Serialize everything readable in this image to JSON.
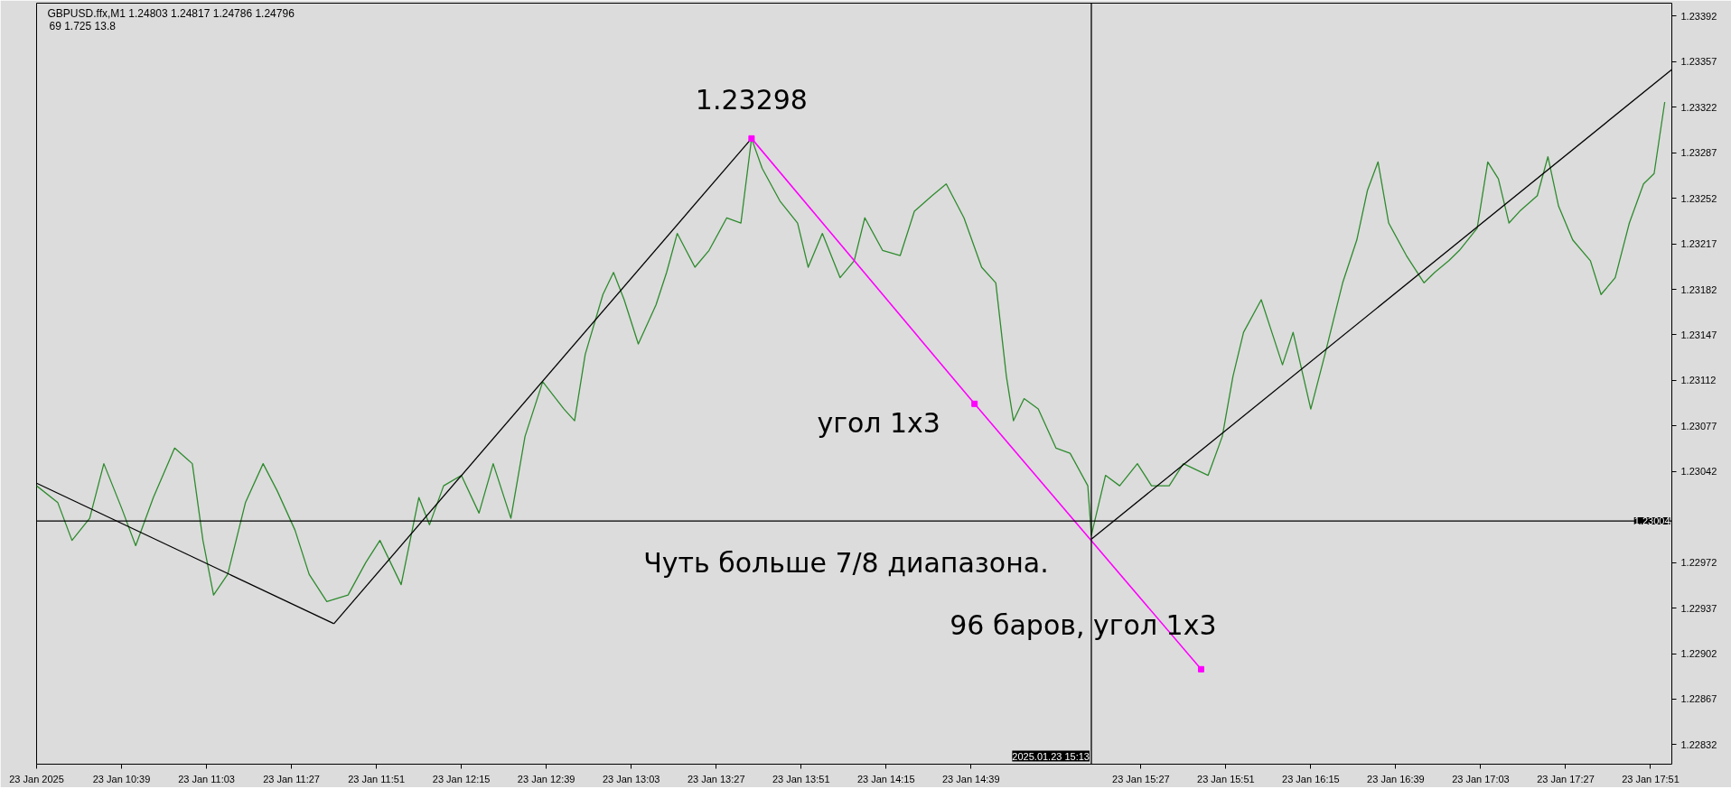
{
  "chart_data": {
    "type": "line",
    "title": "GBPUSD.ffx,M1  1.24803 1.24817 1.24786 1.24796",
    "subtitle": "69   1.725  13.8",
    "series": [
      {
        "color": "#2e8b2e",
        "x": [
          "2025-01-23T10:15",
          "2025-01-23T10:21",
          "2025-01-23T10:25",
          "2025-01-23T10:30",
          "2025-01-23T10:34",
          "2025-01-23T10:39",
          "2025-01-23T10:43",
          "2025-01-23T10:48",
          "2025-01-23T10:54",
          "2025-01-23T10:59",
          "2025-01-23T11:02",
          "2025-01-23T11:05",
          "2025-01-23T11:09",
          "2025-01-23T11:14",
          "2025-01-23T11:19",
          "2025-01-23T11:23",
          "2025-01-23T11:28",
          "2025-01-23T11:32",
          "2025-01-23T11:37",
          "2025-01-23T11:43",
          "2025-01-23T11:48",
          "2025-01-23T11:52",
          "2025-01-23T11:58",
          "2025-01-23T12:03",
          "2025-01-23T12:06",
          "2025-01-23T12:10",
          "2025-01-23T12:15",
          "2025-01-23T12:20",
          "2025-01-23T12:24",
          "2025-01-23T12:29",
          "2025-01-23T12:33",
          "2025-01-23T12:38",
          "2025-01-23T12:44",
          "2025-01-23T12:47",
          "2025-01-23T12:50",
          "2025-01-23T12:55",
          "2025-01-23T12:58",
          "2025-01-23T13:01",
          "2025-01-23T13:05",
          "2025-01-23T13:10",
          "2025-01-23T13:13",
          "2025-01-23T13:16",
          "2025-01-23T13:21",
          "2025-01-23T13:25",
          "2025-01-23T13:30",
          "2025-01-23T13:34",
          "2025-01-23T13:37",
          "2025-01-23T13:40",
          "2025-01-23T13:45",
          "2025-01-23T13:50",
          "2025-01-23T13:53",
          "2025-01-23T13:57",
          "2025-01-23T14:02",
          "2025-01-23T14:06",
          "2025-01-23T14:09",
          "2025-01-23T14:14",
          "2025-01-23T14:19",
          "2025-01-23T14:23",
          "2025-01-23T14:28",
          "2025-01-23T14:32",
          "2025-01-23T14:37",
          "2025-01-23T14:42",
          "2025-01-23T14:46",
          "2025-01-23T14:49",
          "2025-01-23T14:51",
          "2025-01-23T14:54",
          "2025-01-23T14:58",
          "2025-01-23T15:03",
          "2025-01-23T15:07",
          "2025-01-23T15:12",
          "2025-01-23T15:13",
          "2025-01-23T15:17",
          "2025-01-23T15:21",
          "2025-01-23T15:26",
          "2025-01-23T15:30",
          "2025-01-23T15:35",
          "2025-01-23T15:39",
          "2025-01-23T15:46",
          "2025-01-23T15:50",
          "2025-01-23T15:53",
          "2025-01-23T15:56",
          "2025-01-23T16:01",
          "2025-01-23T16:04",
          "2025-01-23T16:07",
          "2025-01-23T16:10",
          "2025-01-23T16:15",
          "2025-01-23T16:19",
          "2025-01-23T16:24",
          "2025-01-23T16:28",
          "2025-01-23T16:31",
          "2025-01-23T16:34",
          "2025-01-23T16:37",
          "2025-01-23T16:42",
          "2025-01-23T16:47",
          "2025-01-23T16:50",
          "2025-01-23T16:54",
          "2025-01-23T16:57",
          "2025-01-23T17:02",
          "2025-01-23T17:05",
          "2025-01-23T17:08",
          "2025-01-23T17:11",
          "2025-01-23T17:14",
          "2025-01-23T17:19",
          "2025-01-23T17:22",
          "2025-01-23T17:25",
          "2025-01-23T17:29",
          "2025-01-23T17:34",
          "2025-01-23T17:37",
          "2025-01-23T17:41",
          "2025-01-23T17:45",
          "2025-01-23T17:49",
          "2025-01-23T17:52",
          "2025-01-23T17:55"
        ],
        "values": [
          1.23031,
          1.23018,
          1.22989,
          1.23006,
          1.23048,
          1.23014,
          1.22985,
          1.23022,
          1.2306,
          1.23048,
          1.22989,
          1.22947,
          1.22963,
          1.23018,
          1.23048,
          1.23027,
          1.22997,
          1.22963,
          1.22942,
          1.22947,
          1.22972,
          1.22989,
          1.22955,
          1.23022,
          1.23001,
          1.23031,
          1.23039,
          1.2301,
          1.23048,
          1.23006,
          1.23069,
          1.23111,
          1.2309,
          1.23081,
          1.23132,
          1.23178,
          1.23195,
          1.23174,
          1.2314,
          1.2317,
          1.23195,
          1.23225,
          1.23199,
          1.23212,
          1.23237,
          1.23233,
          1.23298,
          1.23275,
          1.2325,
          1.23233,
          1.23199,
          1.23225,
          1.23191,
          1.23204,
          1.23237,
          1.23212,
          1.23208,
          1.23242,
          1.23254,
          1.23263,
          1.23237,
          1.23199,
          1.23187,
          1.23115,
          1.23081,
          1.23098,
          1.2309,
          1.2306,
          1.23056,
          1.23031,
          1.22993,
          1.23039,
          1.23031,
          1.23048,
          1.23031,
          1.23031,
          1.23048,
          1.23039,
          1.23069,
          1.23115,
          1.23149,
          1.23174,
          1.23149,
          1.23124,
          1.23149,
          1.2309,
          1.23132,
          1.23187,
          1.2322,
          1.23258,
          1.2328,
          1.23233,
          1.23208,
          1.23187,
          1.23195,
          1.23204,
          1.23212,
          1.23229,
          1.2328,
          1.23267,
          1.23233,
          1.23242,
          1.23254,
          1.23284,
          1.23246,
          1.2322,
          1.23204,
          1.23178,
          1.23191,
          1.23233,
          1.23263,
          1.23271,
          1.23326
        ]
      },
      {
        "color": "#000000",
        "x": [
          "2025-01-23T10:15",
          "2025-01-23T11:39"
        ],
        "values": [
          1.23033,
          1.22925
        ]
      },
      {
        "color": "#000000",
        "x": [
          "2025-01-23T11:39",
          "2025-01-23T13:37"
        ],
        "values": [
          1.22925,
          1.23298
        ]
      },
      {
        "color": "#ff00ff",
        "marker": "square",
        "x": [
          "2025-01-23T13:37",
          "2025-01-23T14:40",
          "2025-01-23T15:44"
        ],
        "values": [
          1.23298,
          1.23094,
          1.2289
        ]
      },
      {
        "color": "#000000",
        "x": [
          "2025-01-23T15:13",
          "2025-01-23T17:57"
        ],
        "values": [
          1.2299,
          1.23351
        ]
      }
    ],
    "xlim": [
      "2025-01-23T10:15",
      "2025-01-23T17:57"
    ],
    "xticks": [
      {
        "value": "2025-01-23T10:15",
        "label": "23 Jan 2025"
      },
      {
        "value": "2025-01-23T10:39",
        "label": "23 Jan 10:39"
      },
      {
        "value": "2025-01-23T11:03",
        "label": "23 Jan 11:03"
      },
      {
        "value": "2025-01-23T11:27",
        "label": "23 Jan 11:27"
      },
      {
        "value": "2025-01-23T11:51",
        "label": "23 Jan 11:51"
      },
      {
        "value": "2025-01-23T12:15",
        "label": "23 Jan 12:15"
      },
      {
        "value": "2025-01-23T12:39",
        "label": "23 Jan 12:39"
      },
      {
        "value": "2025-01-23T13:03",
        "label": "23 Jan 13:03"
      },
      {
        "value": "2025-01-23T13:27",
        "label": "23 Jan 13:27"
      },
      {
        "value": "2025-01-23T13:51",
        "label": "23 Jan 13:51"
      },
      {
        "value": "2025-01-23T14:15",
        "label": "23 Jan 14:15"
      },
      {
        "value": "2025-01-23T14:39",
        "label": "23 Jan 14:39"
      },
      {
        "value": "2025-01-23T15:27",
        "label": "23 Jan 15:27"
      },
      {
        "value": "2025-01-23T15:51",
        "label": "23 Jan 15:51"
      },
      {
        "value": "2025-01-23T16:15",
        "label": "23 Jan 16:15"
      },
      {
        "value": "2025-01-23T16:39",
        "label": "23 Jan 16:39"
      },
      {
        "value": "2025-01-23T17:03",
        "label": "23 Jan 17:03"
      },
      {
        "value": "2025-01-23T17:27",
        "label": "23 Jan 17:27"
      },
      {
        "value": "2025-01-23T17:51",
        "label": "23 Jan 17:51"
      }
    ],
    "ylim": [
      1.22817,
      1.23402
    ],
    "yticks": [
      1.23392,
      1.23357,
      1.23322,
      1.23287,
      1.23252,
      1.23217,
      1.23182,
      1.23147,
      1.23112,
      1.23077,
      1.23042,
      1.22972,
      1.22937,
      1.22902,
      1.22867,
      1.22832
    ],
    "ref_lines": [
      {
        "axis": "y",
        "value": 1.23004,
        "label": "1.23004",
        "color": "#000000"
      },
      {
        "axis": "x",
        "value": "2025-01-23T15:13",
        "label": "2025.01.23 15:13",
        "color": "#000000"
      }
    ],
    "annotations": [
      {
        "text": "1.23298",
        "x": "2025-01-23T13:37",
        "y": 1.23298
      },
      "угол 1x3",
      "Чуть больше 7/8 диапазона.",
      "96 баров, угол 1x3"
    ],
    "grid": false,
    "marker": "none",
    "line_style": "solid"
  }
}
